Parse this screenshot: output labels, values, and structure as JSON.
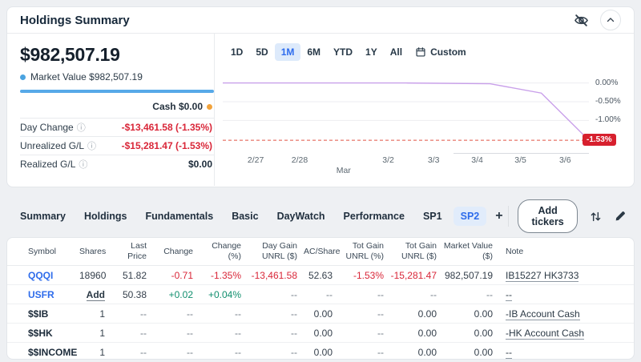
{
  "header": {
    "title": "Holdings Summary"
  },
  "summary": {
    "total": "$982,507.19",
    "market_value_legend": "Market Value $982,507.19",
    "cash": "Cash $0.00",
    "stats": [
      {
        "label": "Day Change",
        "value": "-$13,461.58 (-1.35%)",
        "tone": "neg"
      },
      {
        "label": "Unrealized G/L",
        "value": "-$15,281.47 (-1.53%)",
        "tone": "neg"
      },
      {
        "label": "Realized G/L",
        "value": "$0.00",
        "tone": "plain"
      }
    ]
  },
  "ranges": {
    "options": [
      "1D",
      "5D",
      "1M",
      "6M",
      "YTD",
      "1Y",
      "All"
    ],
    "active": "1M",
    "custom": "Custom"
  },
  "chart_data": {
    "type": "line",
    "series": [
      {
        "name": "Market Value",
        "color": "#c9a0ea",
        "points": [
          [
            0,
            0
          ],
          [
            0.25,
            0
          ],
          [
            0.5,
            0
          ],
          [
            0.73,
            -0.02
          ],
          [
            0.87,
            -0.27
          ],
          [
            1.0,
            -1.53
          ]
        ]
      }
    ],
    "ylim": [
      0.12,
      -1.72
    ],
    "y_ticks": [
      {
        "label": "0.00%",
        "value": 0
      },
      {
        "label": "-0.50%",
        "value": -0.5
      },
      {
        "label": "-1.00%",
        "value": -1.0
      }
    ],
    "reference": {
      "label": "-1.53%",
      "value": -1.53,
      "line_color": "#e05345",
      "badge_color": "#d7202e"
    },
    "x_ticks": [
      {
        "label": "2/27",
        "x": 0.09
      },
      {
        "label": "2/28",
        "x": 0.21
      },
      {
        "label": "Mar",
        "x": 0.33,
        "row": 2
      },
      {
        "label": "3/2",
        "x": 0.452
      },
      {
        "label": "3/3",
        "x": 0.576
      },
      {
        "label": "3/4",
        "x": 0.695
      },
      {
        "label": "3/5",
        "x": 0.813
      },
      {
        "label": "3/6",
        "x": 0.935
      }
    ],
    "grid": true,
    "legend_position": "none"
  },
  "tabs": {
    "items": [
      "Summary",
      "Holdings",
      "Fundamentals",
      "Basic",
      "DayWatch",
      "Performance",
      "SP1",
      "SP2"
    ],
    "active": "SP2",
    "add_label": "+"
  },
  "toolbar": {
    "add_tickers": "Add tickers"
  },
  "table": {
    "columns": [
      {
        "label": "Symbol",
        "align": "left"
      },
      {
        "label": "Shares",
        "align": "right"
      },
      {
        "label": "Last Price",
        "align": "right"
      },
      {
        "label": "Change",
        "align": "right"
      },
      {
        "label": "Change (%)",
        "align": "right"
      },
      {
        "label": "Day Gain UNRL ($)",
        "align": "right"
      },
      {
        "label": "AC/Share",
        "align": "right"
      },
      {
        "label": "Tot Gain UNRL (%)",
        "align": "right"
      },
      {
        "label": "Tot Gain UNRL ($)",
        "align": "right"
      },
      {
        "label": "Market Value ($)",
        "align": "right"
      },
      {
        "label": "Note",
        "align": "left"
      }
    ],
    "rows": [
      {
        "cells": [
          {
            "text": "QQQI",
            "style": "symbol-link"
          },
          {
            "text": "18960"
          },
          {
            "text": "51.82"
          },
          {
            "text": "-0.71",
            "style": "neg"
          },
          {
            "text": "-1.35%",
            "style": "neg"
          },
          {
            "text": "-13,461.58",
            "style": "neg"
          },
          {
            "text": "52.63"
          },
          {
            "text": "-1.53%",
            "style": "neg"
          },
          {
            "text": "-15,281.47",
            "style": "neg"
          },
          {
            "text": "982,507.19"
          },
          {
            "text": "IB15227 HK3733",
            "style": "note"
          }
        ]
      },
      {
        "cells": [
          {
            "text": "USFR",
            "style": "symbol-link"
          },
          {
            "text": "Add",
            "style": "add-link"
          },
          {
            "text": "50.38"
          },
          {
            "text": "+0.02",
            "style": "pos"
          },
          {
            "text": "+0.04%",
            "style": "pos"
          },
          {
            "text": "--",
            "style": "muted"
          },
          {
            "text": "--",
            "style": "muted"
          },
          {
            "text": "--",
            "style": "muted"
          },
          {
            "text": "--",
            "style": "muted"
          },
          {
            "text": "--",
            "style": "muted"
          },
          {
            "text": "--",
            "style": "note"
          }
        ]
      },
      {
        "cells": [
          {
            "text": "$$IB",
            "style": "symbol-plain"
          },
          {
            "text": "1"
          },
          {
            "text": "--",
            "style": "muted"
          },
          {
            "text": "--",
            "style": "muted"
          },
          {
            "text": "--",
            "style": "muted"
          },
          {
            "text": "--",
            "style": "muted"
          },
          {
            "text": "0.00"
          },
          {
            "text": "--",
            "style": "muted"
          },
          {
            "text": "0.00"
          },
          {
            "text": "0.00"
          },
          {
            "text": "-IB Account Cash",
            "style": "note"
          }
        ]
      },
      {
        "cells": [
          {
            "text": "$$HK",
            "style": "symbol-plain"
          },
          {
            "text": "1"
          },
          {
            "text": "--",
            "style": "muted"
          },
          {
            "text": "--",
            "style": "muted"
          },
          {
            "text": "--",
            "style": "muted"
          },
          {
            "text": "--",
            "style": "muted"
          },
          {
            "text": "0.00"
          },
          {
            "text": "--",
            "style": "muted"
          },
          {
            "text": "0.00"
          },
          {
            "text": "0.00"
          },
          {
            "text": "-HK Account Cash",
            "style": "note"
          }
        ]
      },
      {
        "cells": [
          {
            "text": "$$INCOME",
            "style": "symbol-plain"
          },
          {
            "text": "1"
          },
          {
            "text": "--",
            "style": "muted"
          },
          {
            "text": "--",
            "style": "muted"
          },
          {
            "text": "--",
            "style": "muted"
          },
          {
            "text": "--",
            "style": "muted"
          },
          {
            "text": "0.00"
          },
          {
            "text": "--",
            "style": "muted"
          },
          {
            "text": "0.00"
          },
          {
            "text": "0.00"
          },
          {
            "text": "--",
            "style": "note"
          }
        ]
      }
    ]
  },
  "colors": {
    "accent_blue": "#2e6ceb",
    "negative": "#d92638",
    "positive": "#0f8e6d",
    "line_purple": "#c9a0ea",
    "market_value_dot": "#4aa3e0",
    "cash_dot": "#f2a33c",
    "badge_red": "#d7202e"
  }
}
